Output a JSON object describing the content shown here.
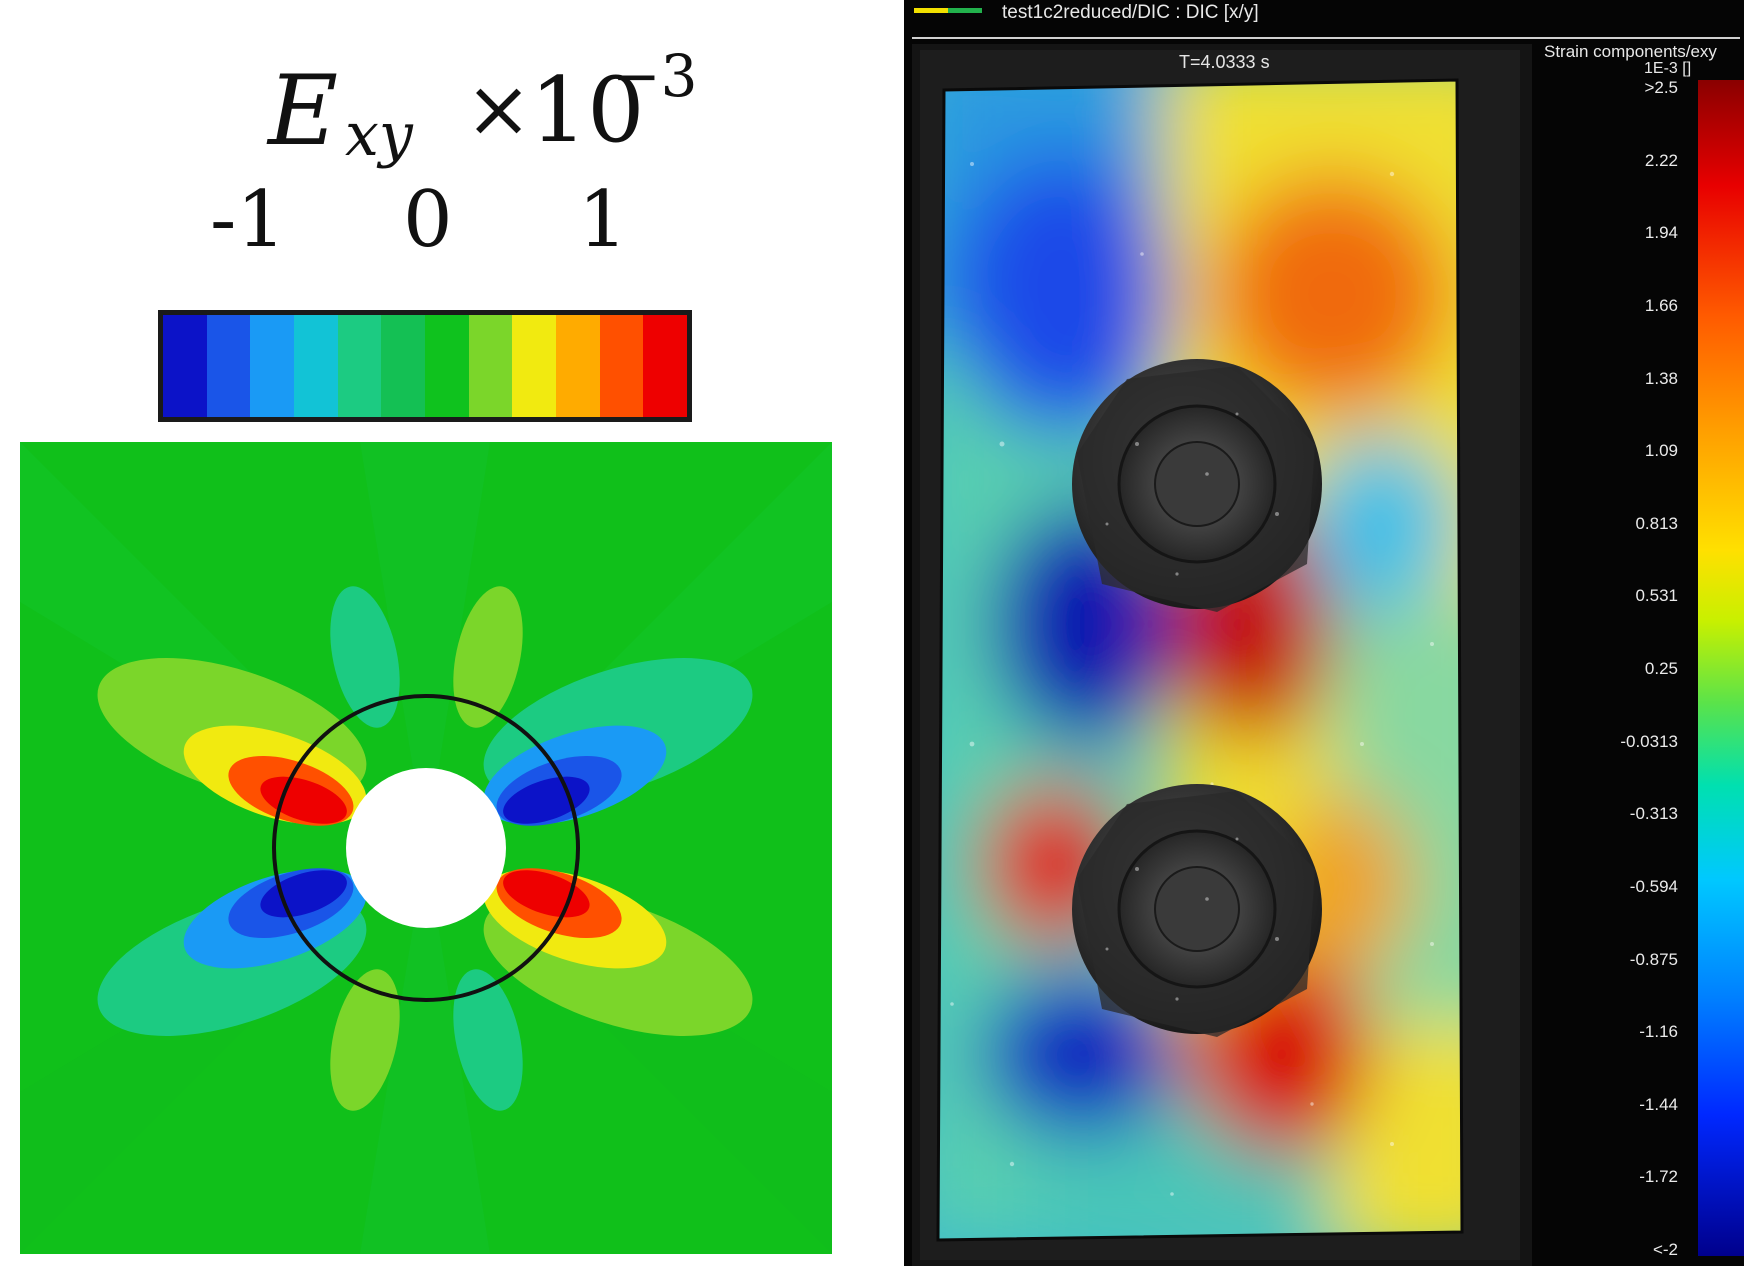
{
  "left_panel": {
    "title": {
      "symbol": "E",
      "subscript": "xy",
      "times": "×",
      "base": "10",
      "exponent": "−3"
    },
    "colorbar_ticks": [
      "-1",
      "0",
      "1"
    ],
    "colorbar_colors": [
      "#0c13c8",
      "#1a55e8",
      "#1a9af5",
      "#12c3d6",
      "#1ccb82",
      "#14c054",
      "#0fc21e",
      "#7bd62a",
      "#f1ea10",
      "#ffab00",
      "#ff5000",
      "#ee0000"
    ],
    "background_color": "#10c01a"
  },
  "right_panel": {
    "window_title": "test1c2reduced/DIC : DIC [x/y]",
    "timestamp": "T=4.0333 s",
    "legend": {
      "title": "Strain components/exy",
      "unit": "1E-3 []",
      "ticks": [
        ">2.5",
        "2.22",
        "1.94",
        "1.66",
        "1.38",
        "1.09",
        "0.813",
        "0.531",
        "0.25",
        "-0.0313",
        "-0.313",
        "-0.594",
        "-0.875",
        "-1.16",
        "-1.44",
        "-1.72",
        "<-2"
      ]
    }
  }
}
